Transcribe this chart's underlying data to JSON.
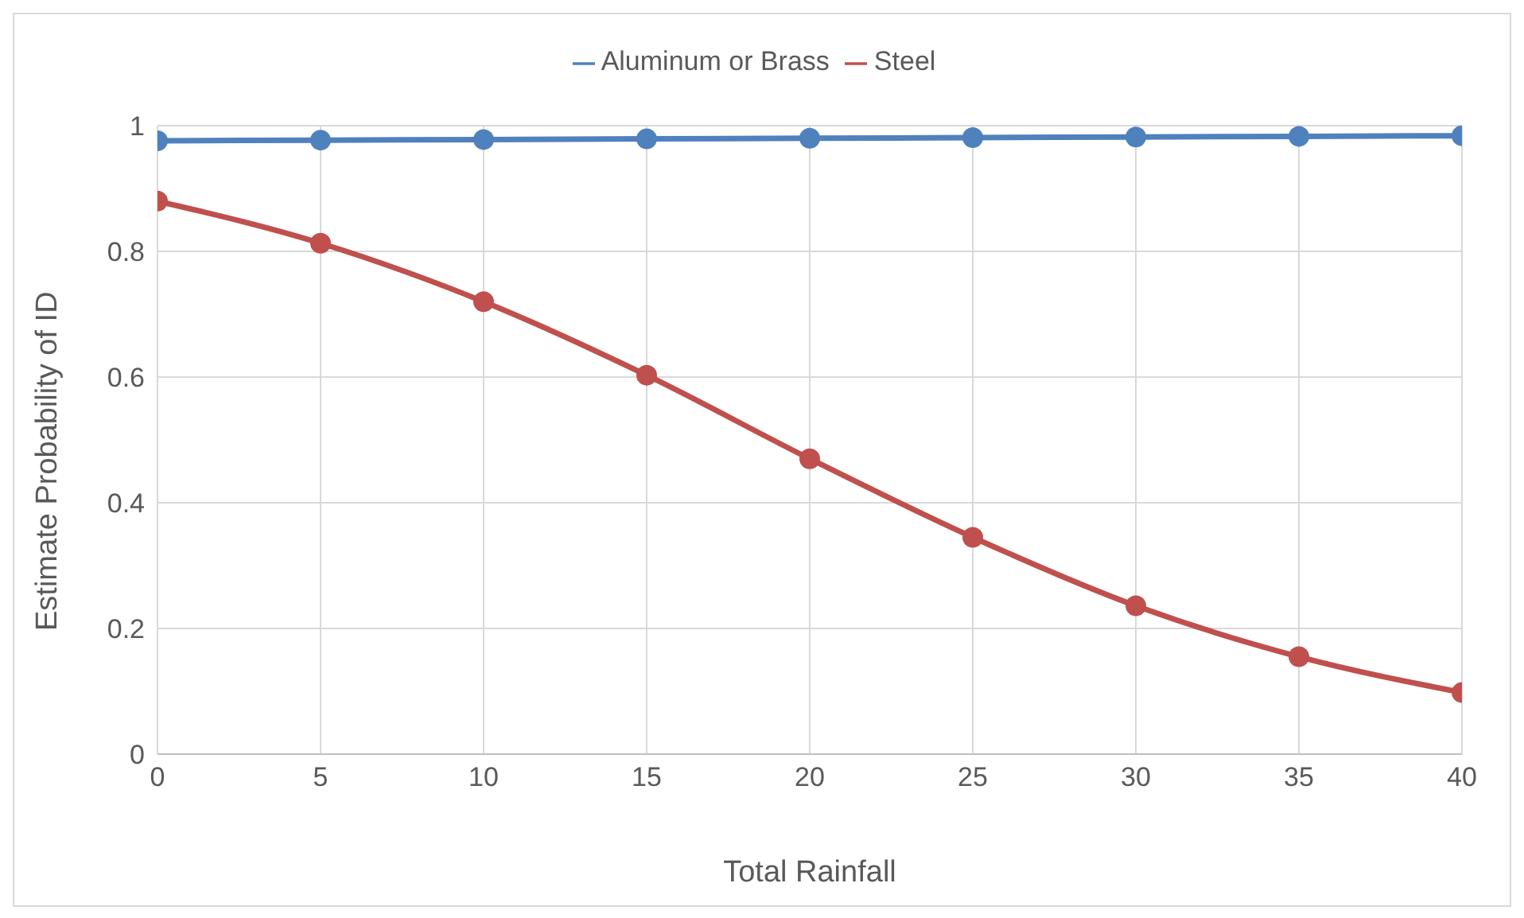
{
  "chart_data": {
    "type": "line",
    "xlabel": "Total Rainfall",
    "ylabel": "Estimate Probability of ID",
    "x": [
      0,
      5,
      10,
      15,
      20,
      25,
      30,
      35,
      40
    ],
    "series": [
      {
        "name": "Steel",
        "color": "#c0504d",
        "values": [
          0.88,
          0.813,
          0.72,
          0.603,
          0.47,
          0.345,
          0.236,
          0.155,
          0.098
        ]
      },
      {
        "name": "Aluminum or Brass",
        "color": "#4f81bd",
        "values": [
          0.976,
          0.977,
          0.978,
          0.979,
          0.98,
          0.981,
          0.982,
          0.983,
          0.984
        ]
      }
    ],
    "xlim": [
      0,
      40
    ],
    "xticks": [
      0,
      5,
      10,
      15,
      20,
      25,
      30,
      35,
      40
    ],
    "ylim": [
      0,
      1
    ],
    "yticks": [
      0,
      0.2,
      0.4,
      0.6,
      0.8,
      1
    ],
    "grid": true,
    "legend": "top",
    "marker": "circle",
    "line_style": "solid"
  }
}
